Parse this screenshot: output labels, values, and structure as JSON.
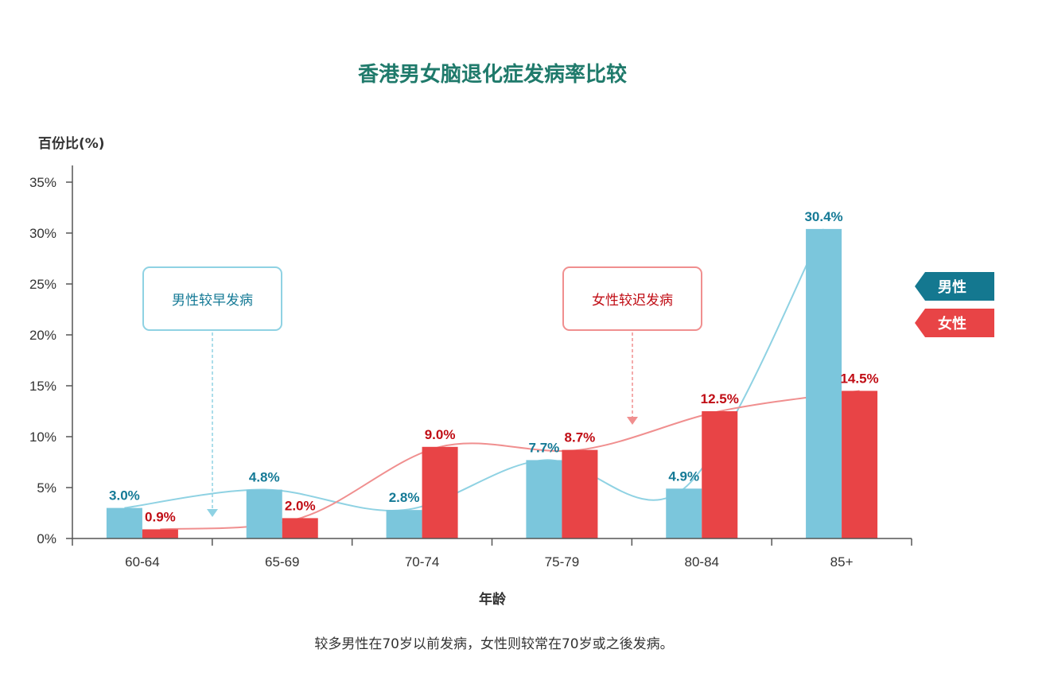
{
  "colors": {
    "title": "#1f7a6b",
    "male_bar": "#7bc6dc",
    "female_bar": "#e84446",
    "male_label": "#157a96",
    "female_label": "#c00d15",
    "male_curve": "#8fd2e3",
    "female_curve": "#f08f8f",
    "legend_male": "#147890",
    "legend_female": "#e84446",
    "axis": "#555555"
  },
  "chart_data": {
    "type": "bar",
    "title": "香港男女脑退化症发病率比较",
    "ylabel": "百份比(%)",
    "xlabel": "年龄",
    "categories": [
      "60-64",
      "65-69",
      "70-74",
      "75-79",
      "80-84",
      "85+"
    ],
    "ylim": [
      0,
      35
    ],
    "yticks": [
      0,
      5,
      10,
      15,
      20,
      25,
      30,
      35
    ],
    "ytick_labels": [
      "0%",
      "5%",
      "10%",
      "15%",
      "20%",
      "25%",
      "30%",
      "35%"
    ],
    "series": [
      {
        "name": "男性",
        "values": [
          3.0,
          4.8,
          2.8,
          7.7,
          4.9,
          30.4
        ],
        "labels": [
          "3.0%",
          "4.8%",
          "2.8%",
          "7.7%",
          "4.9%",
          "30.4%"
        ]
      },
      {
        "name": "女性",
        "values": [
          0.9,
          2.0,
          9.0,
          8.7,
          12.5,
          14.5
        ],
        "labels": [
          "0.9%",
          "2.0%",
          "9.0%",
          "8.7%",
          "12.5%",
          "14.5%"
        ]
      }
    ],
    "legend_position": "right",
    "grid": false,
    "annotations": [
      {
        "text": "男性较早发病",
        "points_to_category": "60-64"
      },
      {
        "text": "女性较迟发病",
        "points_to_category": "75-79"
      }
    ],
    "caption": "较多男性在70岁以前发病，女性则较常在70岁或之後发病。"
  }
}
